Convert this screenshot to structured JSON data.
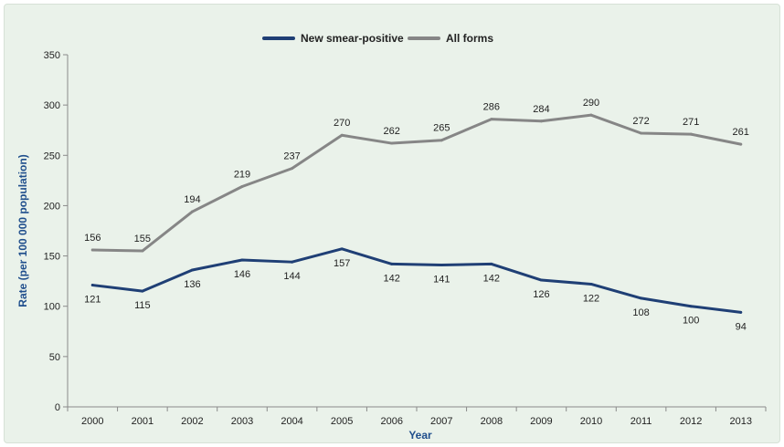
{
  "chart_data": {
    "type": "line",
    "title": "",
    "xlabel": "Year",
    "ylabel": "Rate (per 100 000 population)",
    "ylim": [
      0,
      350
    ],
    "yticks": [
      0,
      50,
      100,
      150,
      200,
      250,
      300,
      350
    ],
    "categories": [
      "2000",
      "2001",
      "2002",
      "2003",
      "2004",
      "2005",
      "2006",
      "2007",
      "2008",
      "2009",
      "2010",
      "2011",
      "2012",
      "2013"
    ],
    "legend_position": "top-center",
    "grid": false,
    "series": [
      {
        "name": "New smear-positive",
        "color": "#1f3f75",
        "label_position": "below",
        "values": [
          121,
          115,
          136,
          146,
          144,
          157,
          142,
          141,
          142,
          126,
          122,
          108,
          100,
          94
        ]
      },
      {
        "name": "All forms",
        "color": "#868686",
        "label_position": "above",
        "values": [
          156,
          155,
          194,
          219,
          237,
          270,
          262,
          265,
          286,
          284,
          290,
          272,
          271,
          261
        ]
      }
    ]
  }
}
